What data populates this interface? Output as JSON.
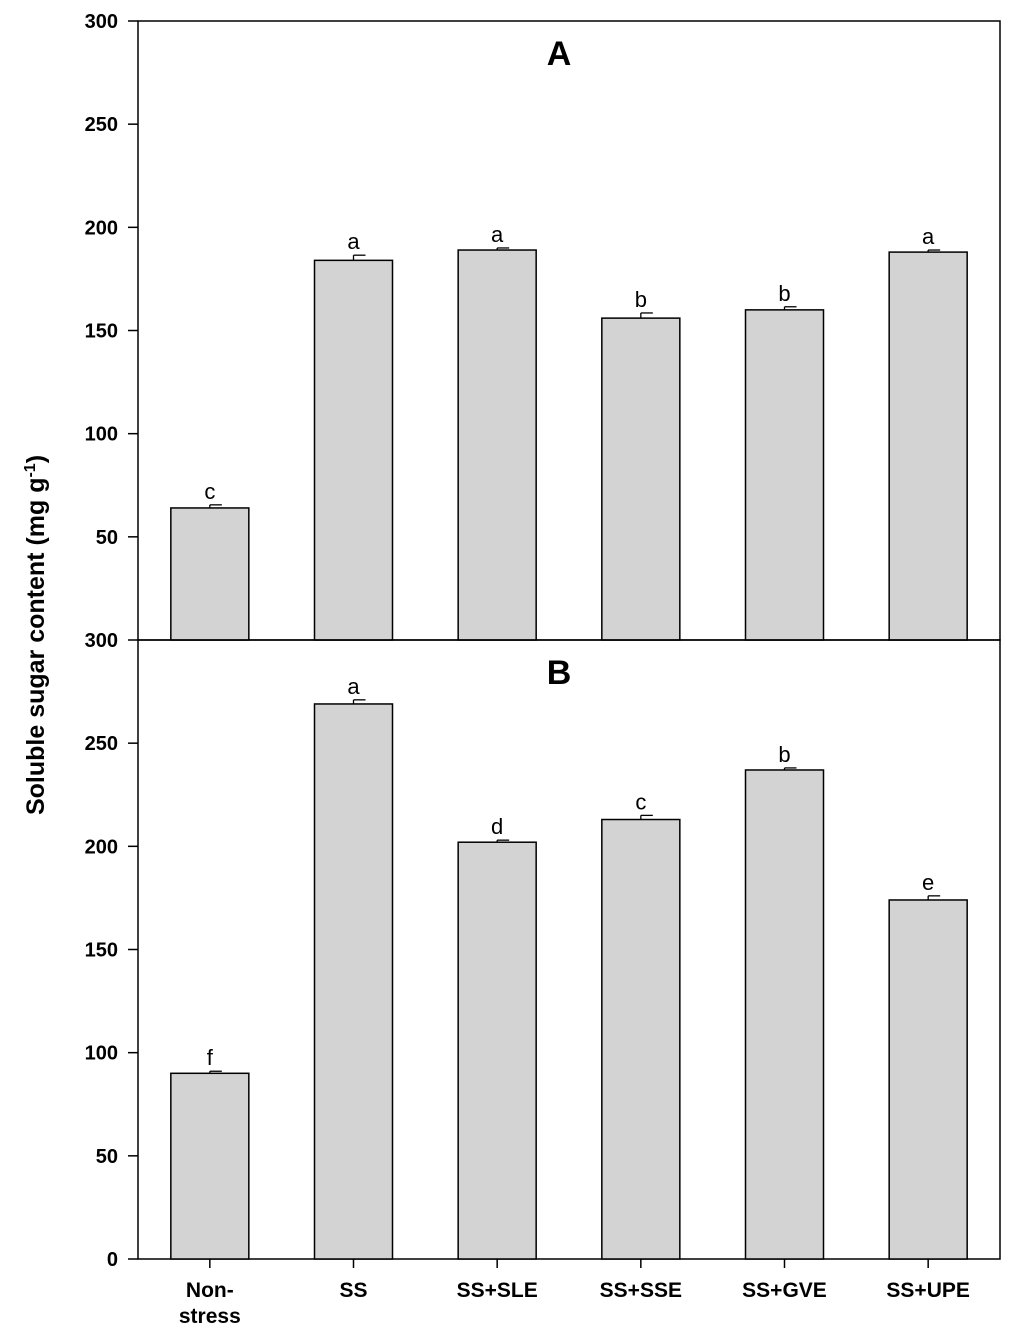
{
  "chart_data": {
    "type": "bar",
    "ylabel": "Soluble sugar content (mg g",
    "ylabel_sup": "-1",
    "ylabel_close": ")",
    "categories": [
      {
        "lines": [
          "Non-",
          "stress"
        ]
      },
      {
        "lines": [
          "SS"
        ]
      },
      {
        "lines": [
          "SS+SLE"
        ]
      },
      {
        "lines": [
          "SS+SSE"
        ]
      },
      {
        "lines": [
          "SS+GVE"
        ]
      },
      {
        "lines": [
          "SS+UPE"
        ]
      }
    ],
    "bar_color": "#d3d3d3",
    "panels": [
      {
        "label": "A",
        "ylim": [
          0,
          300
        ],
        "yticks": [
          50,
          100,
          150,
          200,
          250,
          300
        ],
        "values": [
          64,
          184,
          189,
          156,
          160,
          188
        ],
        "errors": [
          1.5,
          2.5,
          1,
          2.5,
          1.5,
          1
        ],
        "letters": [
          "c",
          "a",
          "a",
          "b",
          "b",
          "a"
        ]
      },
      {
        "label": "B",
        "ylim": [
          0,
          300
        ],
        "yticks": [
          0,
          50,
          100,
          150,
          200,
          250,
          300
        ],
        "values": [
          90,
          269,
          202,
          213,
          237,
          174
        ],
        "errors": [
          1,
          2,
          1,
          2,
          1,
          2
        ],
        "letters": [
          "f",
          "a",
          "d",
          "c",
          "b",
          "e"
        ]
      }
    ]
  }
}
